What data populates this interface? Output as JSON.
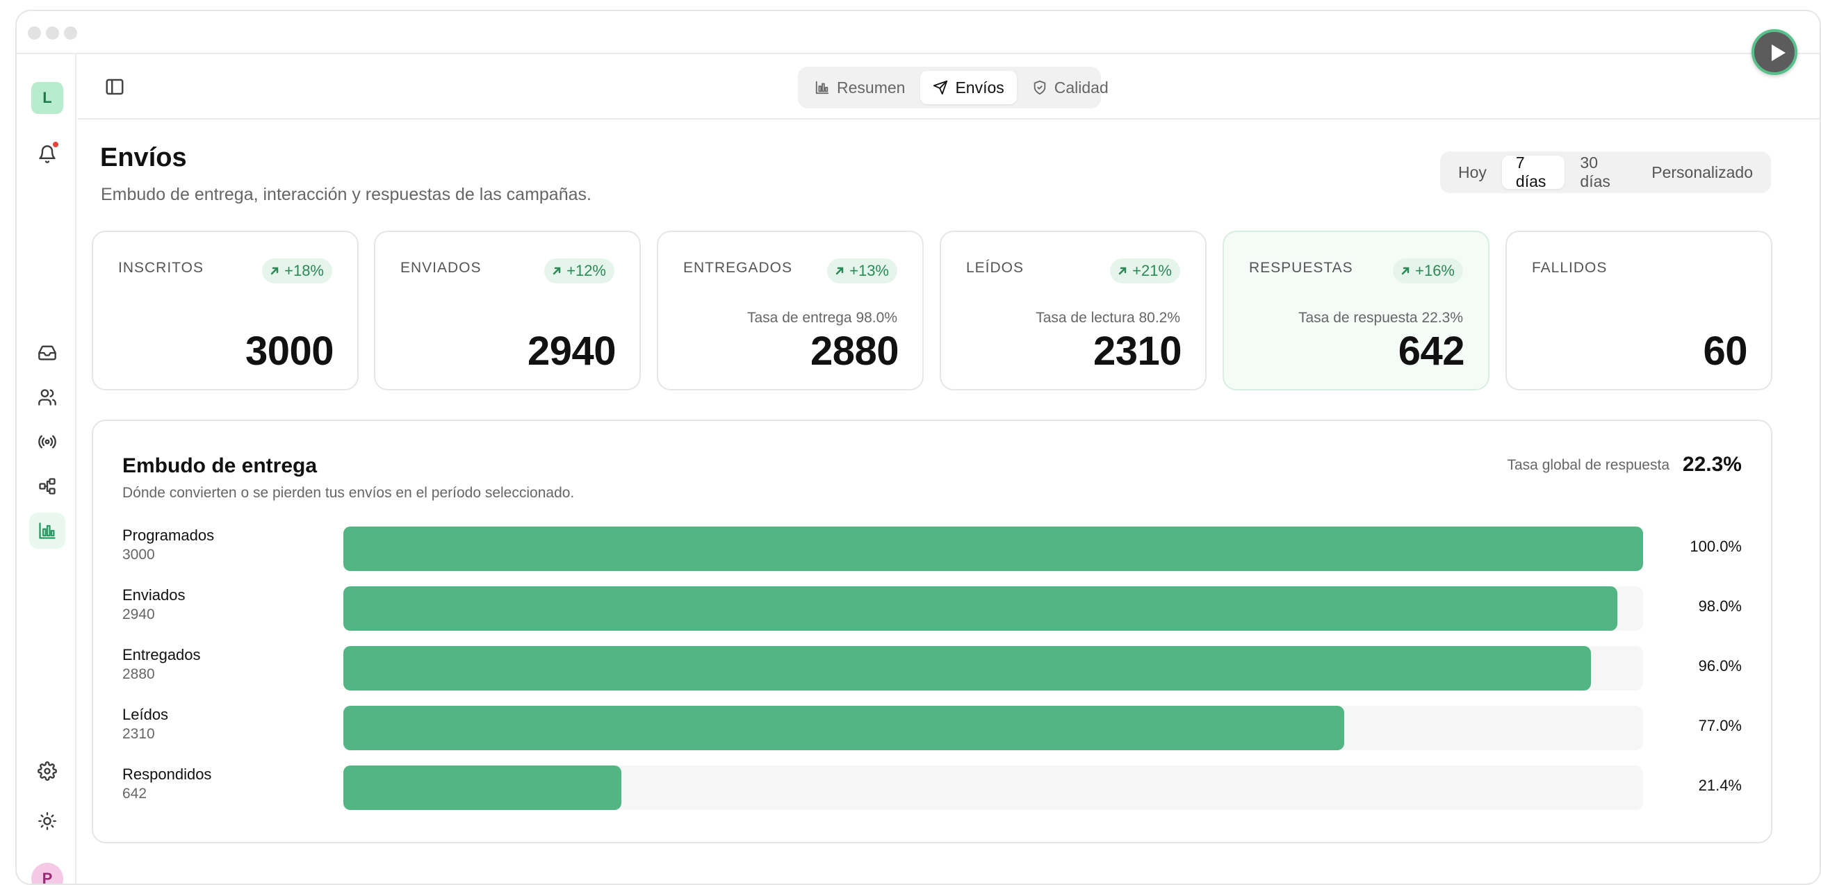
{
  "sidebar": {
    "workspace_initial": "L",
    "user_initial": "P",
    "items": [
      "inbox",
      "contacts",
      "broadcast",
      "flows",
      "analytics"
    ]
  },
  "topbar": {
    "tabs": [
      {
        "label": "Resumen",
        "icon": "bar-chart-icon"
      },
      {
        "label": "Envíos",
        "icon": "send-icon"
      },
      {
        "label": "Calidad",
        "icon": "shield-check-icon"
      }
    ],
    "active_tab": "Envíos"
  },
  "page": {
    "title": "Envíos",
    "subtitle": "Embudo de entrega, interacción y respuestas de las campañas."
  },
  "range": {
    "options": [
      "Hoy",
      "7 días",
      "30 días",
      "Personalizado"
    ],
    "active": "7 días"
  },
  "cards": [
    {
      "label": "INSCRITOS",
      "badge": "+18%",
      "rate": "",
      "value": "3000"
    },
    {
      "label": "ENVIADOS",
      "badge": "+12%",
      "rate": "",
      "value": "2940"
    },
    {
      "label": "ENTREGADOS",
      "badge": "+13%",
      "rate": "Tasa de entrega 98.0%",
      "value": "2880"
    },
    {
      "label": "LEÍDOS",
      "badge": "+21%",
      "rate": "Tasa de lectura 80.2%",
      "value": "2310"
    },
    {
      "label": "RESPUESTAS",
      "badge": "+16%",
      "rate": "Tasa de respuesta 22.3%",
      "value": "642"
    },
    {
      "label": "FALLIDOS",
      "badge": "",
      "rate": "",
      "value": "60"
    }
  ],
  "funnel": {
    "title": "Embudo de entrega",
    "subtitle": "Dónde convierten o se pierden tus envíos en el período seleccionado.",
    "global_label": "Tasa global de respuesta",
    "global_value": "22.3%",
    "rows": [
      {
        "name": "Programados",
        "count": "3000",
        "pct": "100.0%",
        "fraction": 1.0
      },
      {
        "name": "Enviados",
        "count": "2940",
        "pct": "98.0%",
        "fraction": 0.98
      },
      {
        "name": "Entregados",
        "count": "2880",
        "pct": "96.0%",
        "fraction": 0.96
      },
      {
        "name": "Leídos",
        "count": "2310",
        "pct": "77.0%",
        "fraction": 0.77
      },
      {
        "name": "Respondidos",
        "count": "642",
        "pct": "21.4%",
        "fraction": 0.214
      }
    ]
  },
  "colors": {
    "accent": "#53b584",
    "badge_bg": "#e6f5ec",
    "badge_text": "#2a8a56",
    "notification": "#e2453c"
  }
}
